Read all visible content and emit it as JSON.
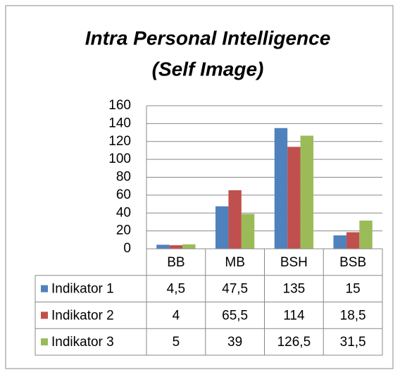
{
  "chart_data": {
    "type": "bar",
    "title": [
      "Intra Personal Intelligence",
      "(Self Image)"
    ],
    "categories": [
      "BB",
      "MB",
      "BSH",
      "BSB"
    ],
    "series": [
      {
        "name": "Indikator 1",
        "color": "#4f81bd",
        "values": [
          4.5,
          47.5,
          135,
          15
        ],
        "value_labels": [
          "4,5",
          "47,5",
          "135",
          "15"
        ]
      },
      {
        "name": "Indikator 2",
        "color": "#c0504d",
        "values": [
          4,
          65.5,
          114,
          18.5
        ],
        "value_labels": [
          "4",
          "65,5",
          "114",
          "18,5"
        ]
      },
      {
        "name": "Indikator 3",
        "color": "#9bbb59",
        "values": [
          5,
          39,
          126.5,
          31.5
        ],
        "value_labels": [
          "5",
          "39",
          "126,5",
          "31,5"
        ]
      }
    ],
    "ylim": [
      0,
      160
    ],
    "yticks": [
      0,
      20,
      40,
      60,
      80,
      100,
      120,
      140,
      160
    ],
    "grid": true
  }
}
